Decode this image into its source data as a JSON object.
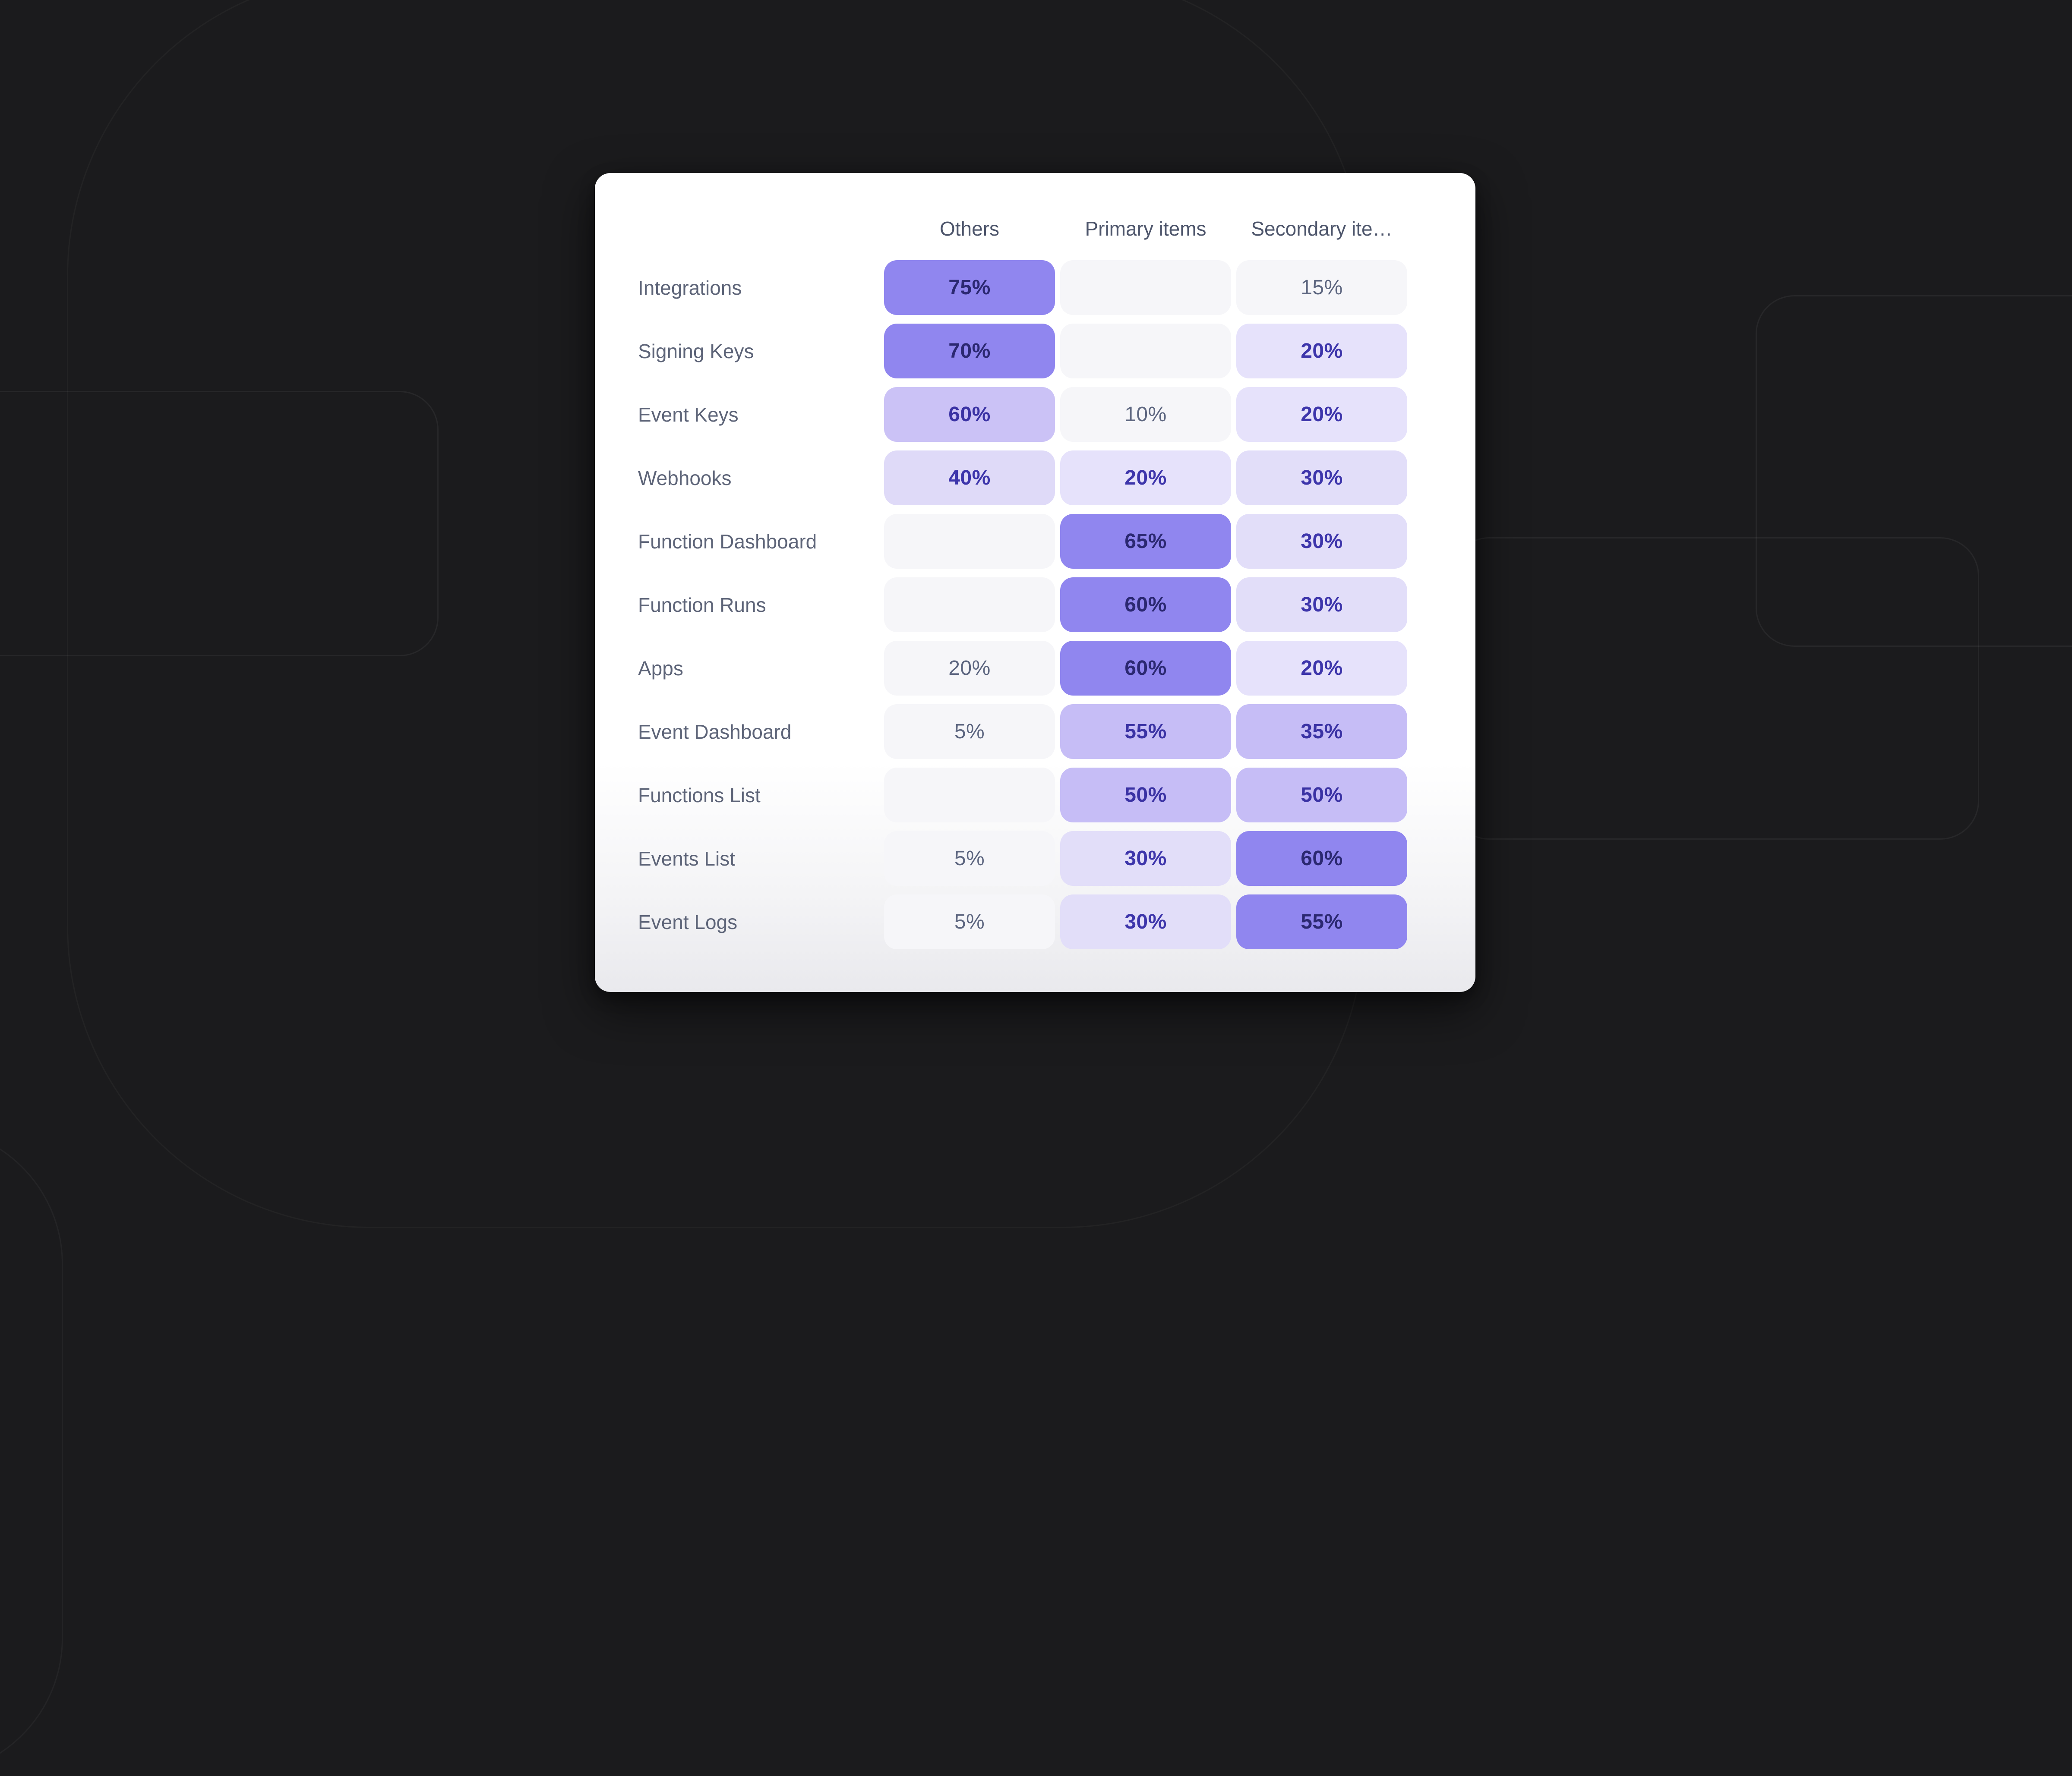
{
  "background": {
    "color": "#1b1b1d",
    "outline_color": "#2a2a2d"
  },
  "levels": {
    "empty": {
      "bg": "#f6f6f9",
      "text": "#5d6680",
      "bold": false
    },
    "gray": {
      "bg": "#f6f6f9",
      "text": "#5d6680",
      "bold": false
    },
    "light20": {
      "bg": "#e6e2fb",
      "text": "#3d35ab",
      "bold": true
    },
    "light30": {
      "bg": "#e2def9",
      "text": "#3d35ab",
      "bold": true
    },
    "light40": {
      "bg": "#dfdaf8",
      "text": "#3d35ab",
      "bold": true
    },
    "medium": {
      "bg": "#c6bdf6",
      "text": "#3a32a4",
      "bold": true
    },
    "medium60": {
      "bg": "#cbc2f6",
      "text": "#3a32a4",
      "bold": true
    },
    "strong": {
      "bg": "#9086ef",
      "text": "#2b2871",
      "bold": true
    }
  },
  "card": {
    "bg": "#ffffff",
    "bottom_fade": "#e9e9ed",
    "header_color": "#4d556b",
    "label_color": "#5d6478",
    "columns": [
      "Others",
      "Primary items",
      "Secondary ite…"
    ],
    "rows": [
      {
        "label": "Integrations",
        "cells": [
          {
            "value": "75%",
            "level": "strong"
          },
          {
            "value": "",
            "level": "empty"
          },
          {
            "value": "15%",
            "level": "gray"
          }
        ]
      },
      {
        "label": "Signing Keys",
        "cells": [
          {
            "value": "70%",
            "level": "strong"
          },
          {
            "value": "",
            "level": "empty"
          },
          {
            "value": "20%",
            "level": "light20"
          }
        ]
      },
      {
        "label": "Event Keys",
        "cells": [
          {
            "value": "60%",
            "level": "medium60"
          },
          {
            "value": "10%",
            "level": "gray"
          },
          {
            "value": "20%",
            "level": "light20"
          }
        ]
      },
      {
        "label": "Webhooks",
        "cells": [
          {
            "value": "40%",
            "level": "light40"
          },
          {
            "value": "20%",
            "level": "light20"
          },
          {
            "value": "30%",
            "level": "light30"
          }
        ]
      },
      {
        "label": "Function Dashboard",
        "cells": [
          {
            "value": "",
            "level": "empty"
          },
          {
            "value": "65%",
            "level": "strong"
          },
          {
            "value": "30%",
            "level": "light30"
          }
        ]
      },
      {
        "label": "Function Runs",
        "cells": [
          {
            "value": "",
            "level": "empty"
          },
          {
            "value": "60%",
            "level": "strong"
          },
          {
            "value": "30%",
            "level": "light30"
          }
        ]
      },
      {
        "label": "Apps",
        "cells": [
          {
            "value": "20%",
            "level": "gray"
          },
          {
            "value": "60%",
            "level": "strong"
          },
          {
            "value": "20%",
            "level": "light20"
          }
        ]
      },
      {
        "label": "Event Dashboard",
        "cells": [
          {
            "value": "5%",
            "level": "gray"
          },
          {
            "value": "55%",
            "level": "medium"
          },
          {
            "value": "35%",
            "level": "medium"
          }
        ]
      },
      {
        "label": "Functions List",
        "cells": [
          {
            "value": "",
            "level": "empty"
          },
          {
            "value": "50%",
            "level": "medium"
          },
          {
            "value": "50%",
            "level": "medium"
          }
        ]
      },
      {
        "label": "Events List",
        "cells": [
          {
            "value": "5%",
            "level": "gray"
          },
          {
            "value": "30%",
            "level": "light30"
          },
          {
            "value": "60%",
            "level": "strong"
          }
        ]
      },
      {
        "label": "Event Logs",
        "cells": [
          {
            "value": "5%",
            "level": "gray"
          },
          {
            "value": "30%",
            "level": "light30"
          },
          {
            "value": "55%",
            "level": "strong"
          }
        ]
      }
    ]
  },
  "chart_data": {
    "type": "heatmap",
    "title": "",
    "unit": "%",
    "columns": [
      "Others",
      "Primary items",
      "Secondary ite…"
    ],
    "rows": [
      "Integrations",
      "Signing Keys",
      "Event Keys",
      "Webhooks",
      "Function Dashboard",
      "Function Runs",
      "Apps",
      "Event Dashboard",
      "Functions List",
      "Events List",
      "Event Logs"
    ],
    "values": [
      [
        75,
        null,
        15
      ],
      [
        70,
        null,
        20
      ],
      [
        60,
        10,
        20
      ],
      [
        40,
        20,
        30
      ],
      [
        null,
        65,
        30
      ],
      [
        null,
        60,
        30
      ],
      [
        20,
        60,
        20
      ],
      [
        5,
        55,
        35
      ],
      [
        null,
        50,
        50
      ],
      [
        5,
        30,
        60
      ],
      [
        5,
        30,
        55
      ]
    ],
    "legend": "none",
    "color_scale": [
      "#f6f6f9",
      "#e6e2fb",
      "#e2def9",
      "#c6bdf6",
      "#9086ef"
    ]
  }
}
